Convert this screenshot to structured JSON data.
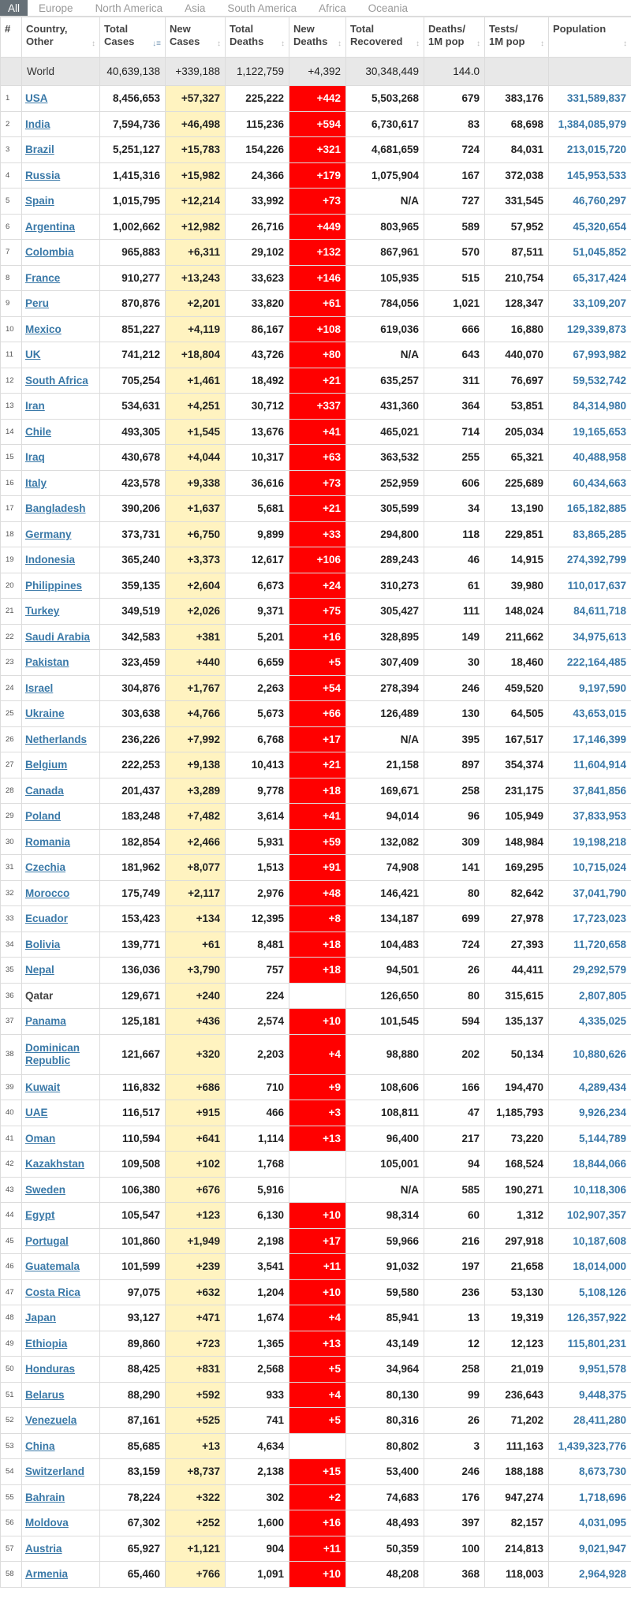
{
  "tabs": [
    "All",
    "Europe",
    "North America",
    "Asia",
    "South America",
    "Africa",
    "Oceania"
  ],
  "columns": {
    "rank": "#",
    "country": [
      "Country,",
      "Other"
    ],
    "total_cases": [
      "Total",
      "Cases"
    ],
    "new_cases": [
      "New",
      "Cases"
    ],
    "total_deaths": [
      "Total",
      "Deaths"
    ],
    "new_deaths": [
      "New",
      "Deaths"
    ],
    "total_recovered": [
      "Total",
      "Recovered"
    ],
    "deaths_1m": [
      "Deaths/",
      "1M pop"
    ],
    "tests_1m": [
      "Tests/",
      "1M pop"
    ],
    "population": [
      "Population",
      ""
    ]
  },
  "colors": {
    "new_cases_bg": "#fff3c0",
    "new_deaths_bg": "#ff0000",
    "link": "#3a79a8",
    "world_row_bg": "#e8e8e8"
  },
  "world": {
    "country": "World",
    "total_cases": "40,639,138",
    "new_cases": "+339,188",
    "total_deaths": "1,122,759",
    "new_deaths": "+4,392",
    "total_recovered": "30,348,449",
    "deaths_1m": "144.0",
    "tests_1m": "",
    "population": ""
  },
  "rows": [
    [
      "1",
      "USA",
      "8,456,653",
      "+57,327",
      "225,222",
      "+442",
      "5,503,268",
      "679",
      "383,176",
      "331,589,837"
    ],
    [
      "2",
      "India",
      "7,594,736",
      "+46,498",
      "115,236",
      "+594",
      "6,730,617",
      "83",
      "68,698",
      "1,384,085,979"
    ],
    [
      "3",
      "Brazil",
      "5,251,127",
      "+15,783",
      "154,226",
      "+321",
      "4,681,659",
      "724",
      "84,031",
      "213,015,720"
    ],
    [
      "4",
      "Russia",
      "1,415,316",
      "+15,982",
      "24,366",
      "+179",
      "1,075,904",
      "167",
      "372,038",
      "145,953,533"
    ],
    [
      "5",
      "Spain",
      "1,015,795",
      "+12,214",
      "33,992",
      "+73",
      "N/A",
      "727",
      "331,545",
      "46,760,297"
    ],
    [
      "6",
      "Argentina",
      "1,002,662",
      "+12,982",
      "26,716",
      "+449",
      "803,965",
      "589",
      "57,952",
      "45,320,654"
    ],
    [
      "7",
      "Colombia",
      "965,883",
      "+6,311",
      "29,102",
      "+132",
      "867,961",
      "570",
      "87,511",
      "51,045,852"
    ],
    [
      "8",
      "France",
      "910,277",
      "+13,243",
      "33,623",
      "+146",
      "105,935",
      "515",
      "210,754",
      "65,317,424"
    ],
    [
      "9",
      "Peru",
      "870,876",
      "+2,201",
      "33,820",
      "+61",
      "784,056",
      "1,021",
      "128,347",
      "33,109,207"
    ],
    [
      "10",
      "Mexico",
      "851,227",
      "+4,119",
      "86,167",
      "+108",
      "619,036",
      "666",
      "16,880",
      "129,339,873"
    ],
    [
      "11",
      "UK",
      "741,212",
      "+18,804",
      "43,726",
      "+80",
      "N/A",
      "643",
      "440,070",
      "67,993,982"
    ],
    [
      "12",
      "South Africa",
      "705,254",
      "+1,461",
      "18,492",
      "+21",
      "635,257",
      "311",
      "76,697",
      "59,532,742"
    ],
    [
      "13",
      "Iran",
      "534,631",
      "+4,251",
      "30,712",
      "+337",
      "431,360",
      "364",
      "53,851",
      "84,314,980"
    ],
    [
      "14",
      "Chile",
      "493,305",
      "+1,545",
      "13,676",
      "+41",
      "465,021",
      "714",
      "205,034",
      "19,165,653"
    ],
    [
      "15",
      "Iraq",
      "430,678",
      "+4,044",
      "10,317",
      "+63",
      "363,532",
      "255",
      "65,321",
      "40,488,958"
    ],
    [
      "16",
      "Italy",
      "423,578",
      "+9,338",
      "36,616",
      "+73",
      "252,959",
      "606",
      "225,689",
      "60,434,663"
    ],
    [
      "17",
      "Bangladesh",
      "390,206",
      "+1,637",
      "5,681",
      "+21",
      "305,599",
      "34",
      "13,190",
      "165,182,885"
    ],
    [
      "18",
      "Germany",
      "373,731",
      "+6,750",
      "9,899",
      "+33",
      "294,800",
      "118",
      "229,851",
      "83,865,285"
    ],
    [
      "19",
      "Indonesia",
      "365,240",
      "+3,373",
      "12,617",
      "+106",
      "289,243",
      "46",
      "14,915",
      "274,392,799"
    ],
    [
      "20",
      "Philippines",
      "359,135",
      "+2,604",
      "6,673",
      "+24",
      "310,273",
      "61",
      "39,980",
      "110,017,637"
    ],
    [
      "21",
      "Turkey",
      "349,519",
      "+2,026",
      "9,371",
      "+75",
      "305,427",
      "111",
      "148,024",
      "84,611,718"
    ],
    [
      "22",
      "Saudi Arabia",
      "342,583",
      "+381",
      "5,201",
      "+16",
      "328,895",
      "149",
      "211,662",
      "34,975,613"
    ],
    [
      "23",
      "Pakistan",
      "323,459",
      "+440",
      "6,659",
      "+5",
      "307,409",
      "30",
      "18,460",
      "222,164,485"
    ],
    [
      "24",
      "Israel",
      "304,876",
      "+1,767",
      "2,263",
      "+54",
      "278,394",
      "246",
      "459,520",
      "9,197,590"
    ],
    [
      "25",
      "Ukraine",
      "303,638",
      "+4,766",
      "5,673",
      "+66",
      "126,489",
      "130",
      "64,505",
      "43,653,015"
    ],
    [
      "26",
      "Netherlands",
      "236,226",
      "+7,992",
      "6,768",
      "+17",
      "N/A",
      "395",
      "167,517",
      "17,146,399"
    ],
    [
      "27",
      "Belgium",
      "222,253",
      "+9,138",
      "10,413",
      "+21",
      "21,158",
      "897",
      "354,374",
      "11,604,914"
    ],
    [
      "28",
      "Canada",
      "201,437",
      "+3,289",
      "9,778",
      "+18",
      "169,671",
      "258",
      "231,175",
      "37,841,856"
    ],
    [
      "29",
      "Poland",
      "183,248",
      "+7,482",
      "3,614",
      "+41",
      "94,014",
      "96",
      "105,949",
      "37,833,953"
    ],
    [
      "30",
      "Romania",
      "182,854",
      "+2,466",
      "5,931",
      "+59",
      "132,082",
      "309",
      "148,984",
      "19,198,218"
    ],
    [
      "31",
      "Czechia",
      "181,962",
      "+8,077",
      "1,513",
      "+91",
      "74,908",
      "141",
      "169,295",
      "10,715,024"
    ],
    [
      "32",
      "Morocco",
      "175,749",
      "+2,117",
      "2,976",
      "+48",
      "146,421",
      "80",
      "82,642",
      "37,041,790"
    ],
    [
      "33",
      "Ecuador",
      "153,423",
      "+134",
      "12,395",
      "+8",
      "134,187",
      "699",
      "27,978",
      "17,723,023"
    ],
    [
      "34",
      "Bolivia",
      "139,771",
      "+61",
      "8,481",
      "+18",
      "104,483",
      "724",
      "27,393",
      "11,720,658"
    ],
    [
      "35",
      "Nepal",
      "136,036",
      "+3,790",
      "757",
      "+18",
      "94,501",
      "26",
      "44,411",
      "29,292,579"
    ],
    [
      "36",
      "Qatar",
      "129,671",
      "+240",
      "224",
      "",
      "126,650",
      "80",
      "315,615",
      "2,807,805"
    ],
    [
      "37",
      "Panama",
      "125,181",
      "+436",
      "2,574",
      "+10",
      "101,545",
      "594",
      "135,137",
      "4,335,025"
    ],
    [
      "38",
      "Dominican Republic",
      "121,667",
      "+320",
      "2,203",
      "+4",
      "98,880",
      "202",
      "50,134",
      "10,880,626"
    ],
    [
      "39",
      "Kuwait",
      "116,832",
      "+686",
      "710",
      "+9",
      "108,606",
      "166",
      "194,470",
      "4,289,434"
    ],
    [
      "40",
      "UAE",
      "116,517",
      "+915",
      "466",
      "+3",
      "108,811",
      "47",
      "1,185,793",
      "9,926,234"
    ],
    [
      "41",
      "Oman",
      "110,594",
      "+641",
      "1,114",
      "+13",
      "96,400",
      "217",
      "73,220",
      "5,144,789"
    ],
    [
      "42",
      "Kazakhstan",
      "109,508",
      "+102",
      "1,768",
      "",
      "105,001",
      "94",
      "168,524",
      "18,844,066"
    ],
    [
      "43",
      "Sweden",
      "106,380",
      "+676",
      "5,916",
      "",
      "N/A",
      "585",
      "190,271",
      "10,118,306"
    ],
    [
      "44",
      "Egypt",
      "105,547",
      "+123",
      "6,130",
      "+10",
      "98,314",
      "60",
      "1,312",
      "102,907,357"
    ],
    [
      "45",
      "Portugal",
      "101,860",
      "+1,949",
      "2,198",
      "+17",
      "59,966",
      "216",
      "297,918",
      "10,187,608"
    ],
    [
      "46",
      "Guatemala",
      "101,599",
      "+239",
      "3,541",
      "+11",
      "91,032",
      "197",
      "21,658",
      "18,014,000"
    ],
    [
      "47",
      "Costa Rica",
      "97,075",
      "+632",
      "1,204",
      "+10",
      "59,580",
      "236",
      "53,130",
      "5,108,126"
    ],
    [
      "48",
      "Japan",
      "93,127",
      "+471",
      "1,674",
      "+4",
      "85,941",
      "13",
      "19,319",
      "126,357,922"
    ],
    [
      "49",
      "Ethiopia",
      "89,860",
      "+723",
      "1,365",
      "+13",
      "43,149",
      "12",
      "12,123",
      "115,801,231"
    ],
    [
      "50",
      "Honduras",
      "88,425",
      "+831",
      "2,568",
      "+5",
      "34,964",
      "258",
      "21,019",
      "9,951,578"
    ],
    [
      "51",
      "Belarus",
      "88,290",
      "+592",
      "933",
      "+4",
      "80,130",
      "99",
      "236,643",
      "9,448,375"
    ],
    [
      "52",
      "Venezuela",
      "87,161",
      "+525",
      "741",
      "+5",
      "80,316",
      "26",
      "71,202",
      "28,411,280"
    ],
    [
      "53",
      "China",
      "85,685",
      "+13",
      "4,634",
      "",
      "80,802",
      "3",
      "111,163",
      "1,439,323,776"
    ],
    [
      "54",
      "Switzerland",
      "83,159",
      "+8,737",
      "2,138",
      "+15",
      "53,400",
      "246",
      "188,188",
      "8,673,730"
    ],
    [
      "55",
      "Bahrain",
      "78,224",
      "+322",
      "302",
      "+2",
      "74,683",
      "176",
      "947,274",
      "1,718,696"
    ],
    [
      "56",
      "Moldova",
      "67,302",
      "+252",
      "1,600",
      "+16",
      "48,493",
      "397",
      "82,157",
      "4,031,095"
    ],
    [
      "57",
      "Austria",
      "65,927",
      "+1,121",
      "904",
      "+11",
      "50,359",
      "100",
      "214,813",
      "9,021,947"
    ],
    [
      "58",
      "Armenia",
      "65,460",
      "+766",
      "1,091",
      "+10",
      "48,208",
      "368",
      "118,003",
      "2,964,928"
    ]
  ],
  "unlinked_countries": [
    "Qatar"
  ],
  "icons": {
    "sort_active": "sort-desc-icon",
    "sort": "sort-icon"
  }
}
